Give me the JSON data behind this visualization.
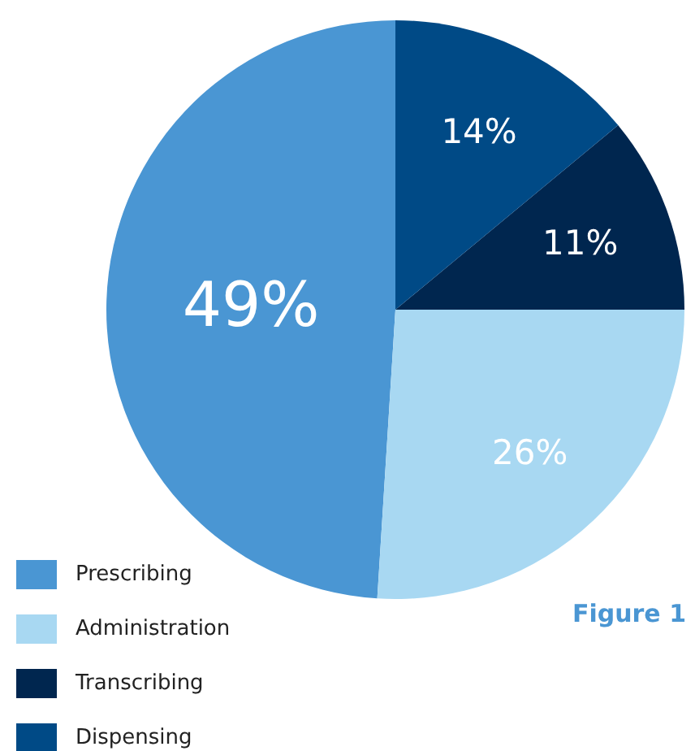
{
  "chart_data": {
    "type": "pie",
    "categories": [
      "Prescribing",
      "Administration",
      "Transcribing",
      "Dispensing"
    ],
    "values": [
      49,
      26,
      11,
      14
    ],
    "colors": [
      "#4a96d3",
      "#a8d8f2",
      "#00264f",
      "#004a86"
    ],
    "value_labels": [
      "49%",
      "26%",
      "11%",
      "14%"
    ],
    "legend": "bottom left",
    "annotations": [
      "Figure 1"
    ]
  }
}
